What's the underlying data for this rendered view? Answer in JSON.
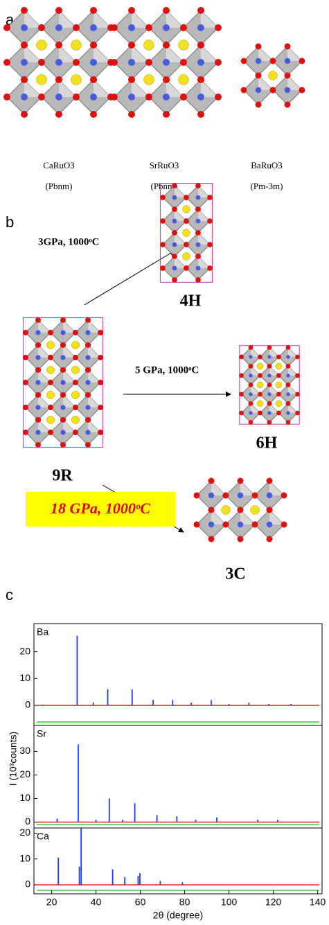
{
  "panel_a": {
    "label": "a",
    "structures": [
      {
        "name": "CaRuO3",
        "space_group": "(Pbnm)"
      },
      {
        "name": "SrRuO3",
        "space_group": "(Pbnm)"
      },
      {
        "name": "BaRuO3",
        "space_group": "(Pm-3m)"
      }
    ]
  },
  "panel_b": {
    "label": "b",
    "conditions": [
      "3GPa, 1000ᵒC",
      "5 GPa, 1000ᵒC",
      "18 GPa, 1000ᵒC"
    ],
    "phases": [
      "9R",
      "4H",
      "6H",
      "3C"
    ]
  },
  "panel_c": {
    "label": "c",
    "ylabel": "I (10³counts)",
    "xlabel": "2θ (degree)"
  },
  "chart_data": [
    {
      "type": "stem",
      "label": "Ba",
      "color": "#1a3cff",
      "x": [
        31.5,
        38.8,
        45.3,
        56.3,
        65.8,
        74.6,
        83,
        92,
        100,
        109,
        118,
        128
      ],
      "values": [
        26,
        1,
        6,
        6,
        2,
        2,
        1,
        2,
        0.5,
        1,
        0.5,
        0.5
      ],
      "xlim": [
        12,
        142
      ],
      "ylim": [
        -7.5,
        30.5
      ],
      "yticks": [
        0,
        10,
        20
      ]
    },
    {
      "type": "stem",
      "label": "Sr",
      "color": "#1a3cff",
      "x": [
        22.5,
        32,
        40,
        46,
        52,
        57.5,
        67.5,
        76.5,
        85,
        94.5,
        113,
        122
      ],
      "values": [
        1.5,
        33,
        1,
        10,
        1,
        8,
        3,
        2.5,
        1,
        2,
        1,
        1
      ],
      "xlim": [
        12,
        142
      ],
      "ylim": [
        -2.5,
        41
      ],
      "yticks": [
        0,
        10,
        20,
        30
      ]
    },
    {
      "type": "stem",
      "label": "Ca",
      "color": "#1a3cff",
      "x": [
        23,
        32.5,
        33.3,
        47.5,
        53,
        59,
        59.8,
        69,
        79
      ],
      "values": [
        10.5,
        7,
        22,
        6,
        3,
        3.5,
        4.5,
        1.5,
        1
      ],
      "xlim": [
        12,
        142
      ],
      "ylim": [
        -3.5,
        22
      ],
      "yticks": [
        0,
        10,
        20
      ],
      "xticks": [
        20,
        40,
        60,
        80,
        100,
        120,
        140
      ]
    }
  ]
}
